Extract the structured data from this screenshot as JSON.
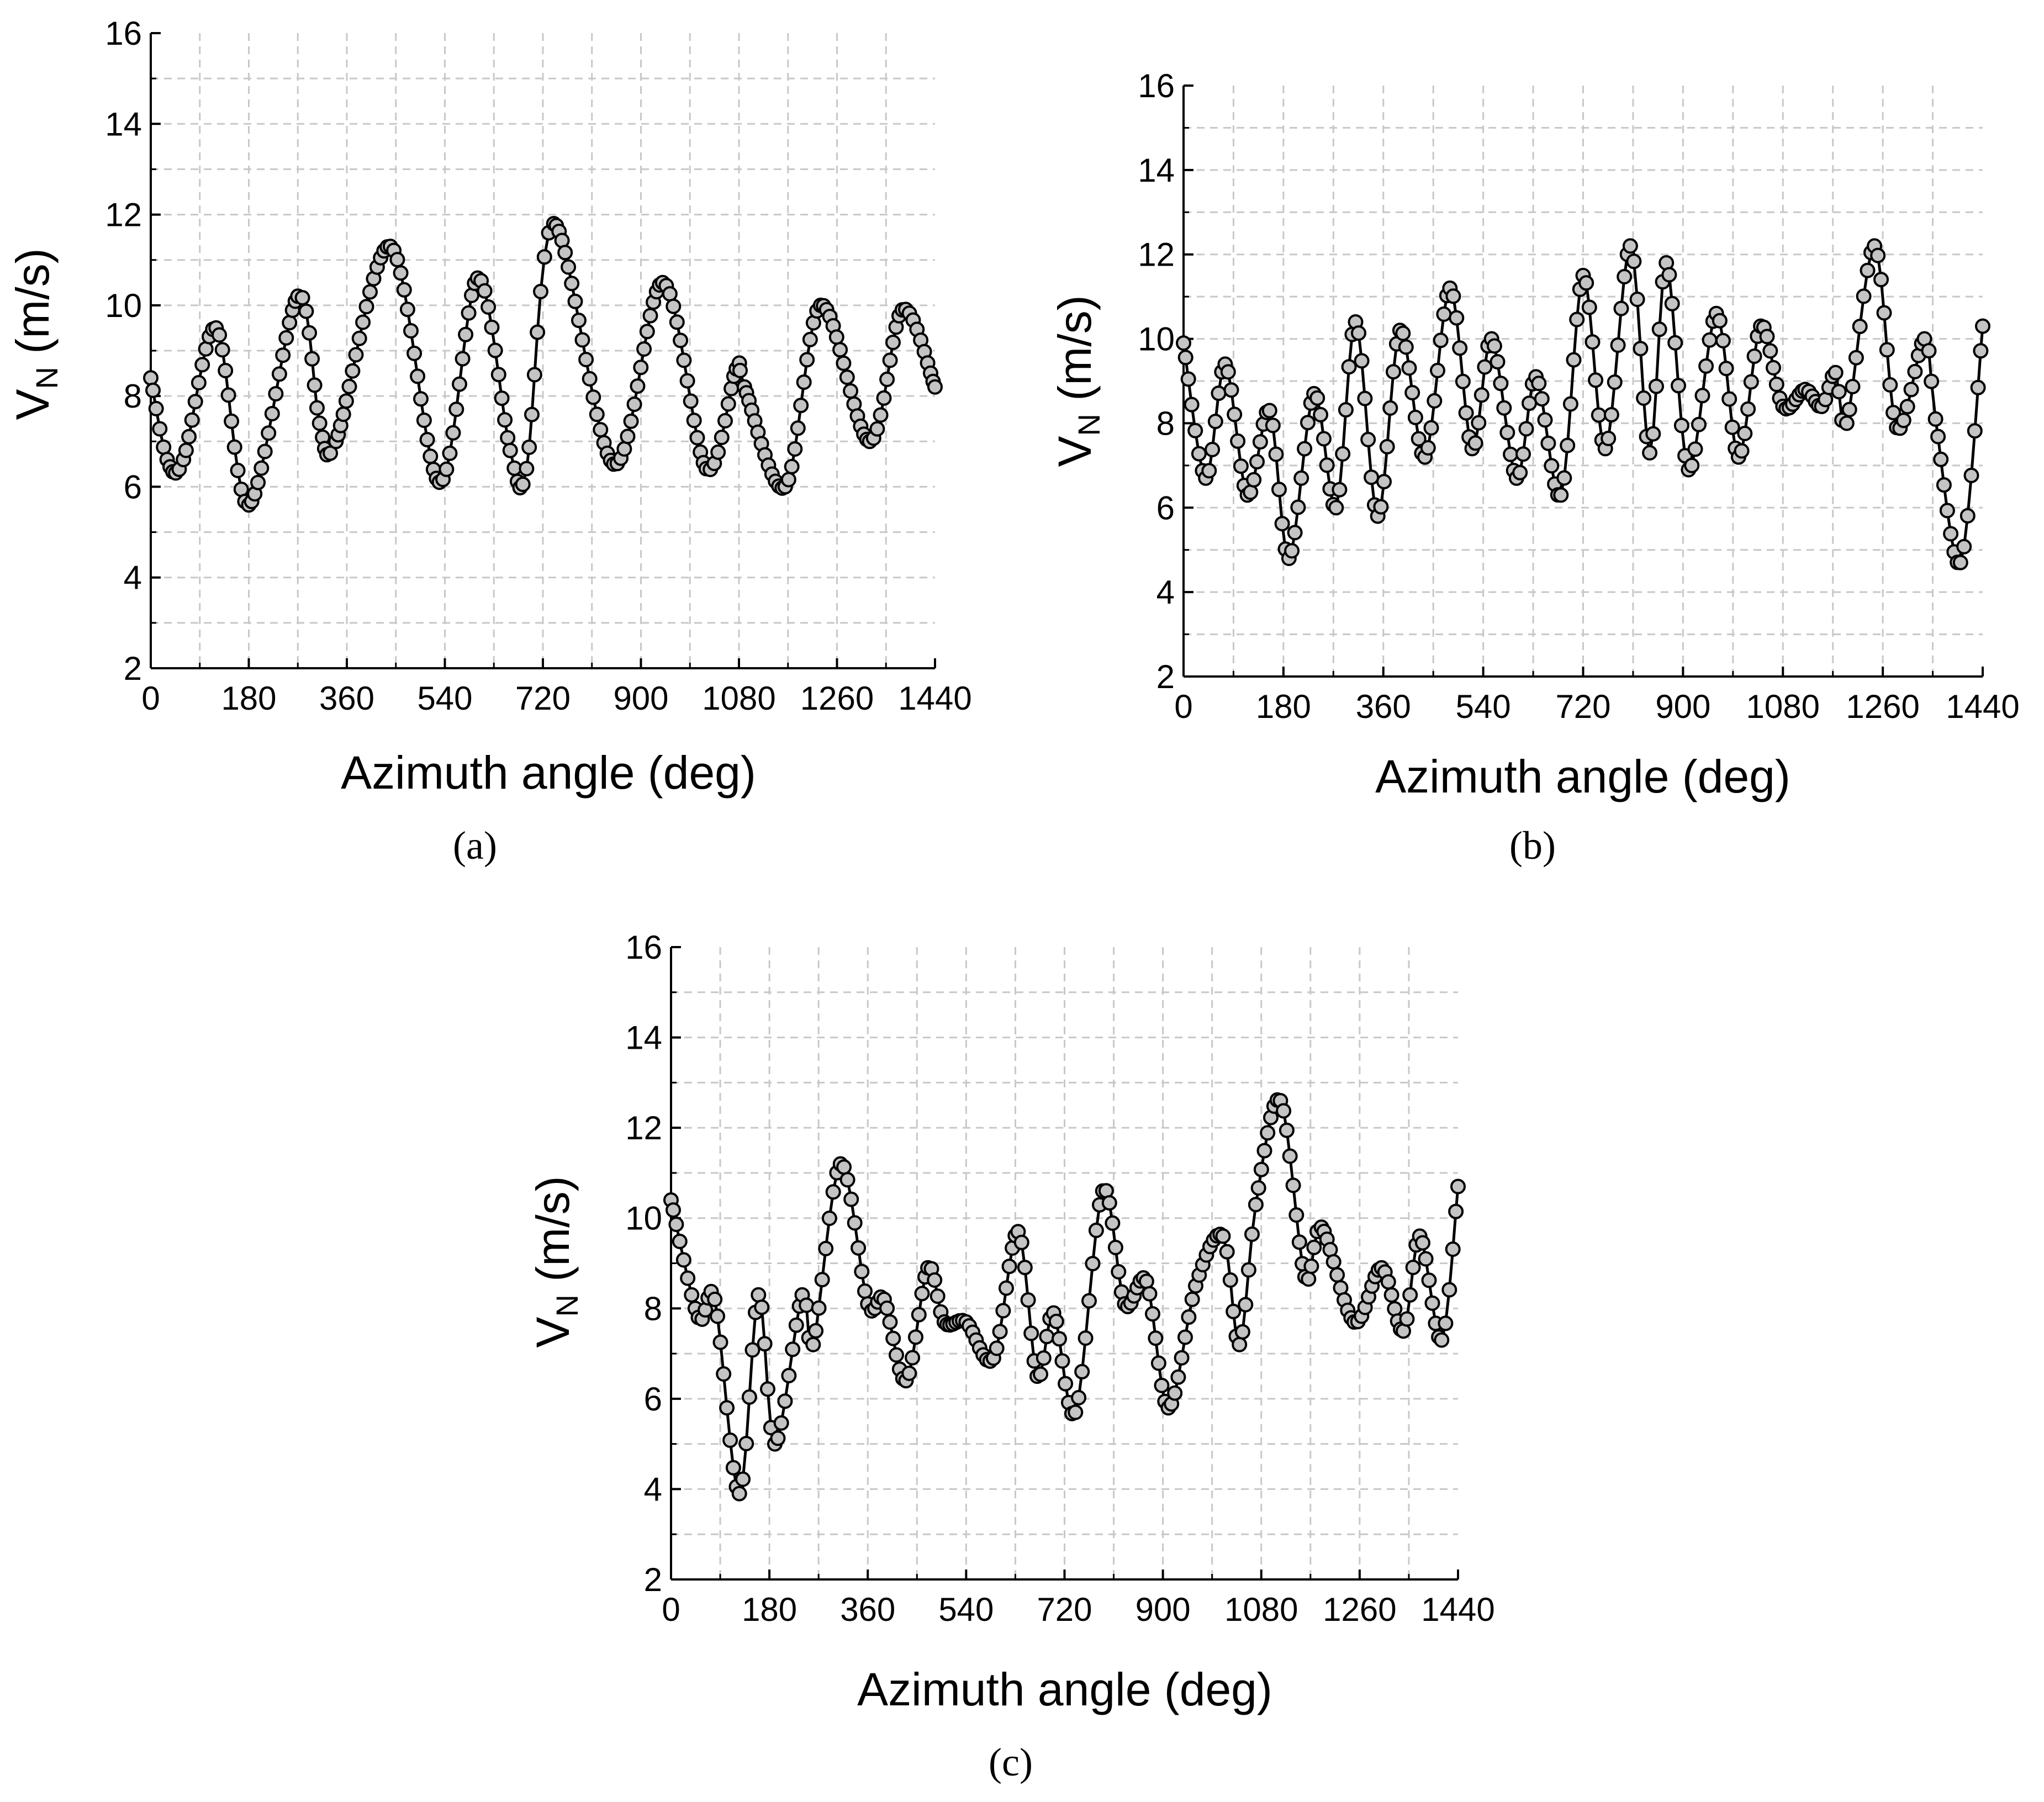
{
  "chart_data": [
    {
      "type": "line",
      "panel": "a",
      "caption": "(a)",
      "xlabel": "Azimuth angle (deg)",
      "ylabel_main": "V",
      "ylabel_sub": "N",
      "ylabel_unit": " (m/s)",
      "xlim": [
        0,
        1440
      ],
      "ylim": [
        2,
        16
      ],
      "xticks": [
        "0",
        "180",
        "360",
        "540",
        "720",
        "900",
        "1080",
        "1260",
        "1440"
      ],
      "yticks": [
        "2",
        "4",
        "6",
        "8",
        "10",
        "12",
        "14",
        "16"
      ],
      "series": [
        {
          "name": "V_N",
          "x": [
            0,
            30,
            60,
            120,
            180,
            270,
            310,
            340,
            440,
            530,
            600,
            660,
            690,
            740,
            850,
            940,
            1020,
            1075,
            1090,
            1165,
            1230,
            1320,
            1380,
            1440
          ],
          "y": [
            8.4,
            6.6,
            6.6,
            9.5,
            5.6,
            10.2,
            7.4,
            7.0,
            11.3,
            6.1,
            10.6,
            6.8,
            6.4,
            11.8,
            6.5,
            10.5,
            6.4,
            8.6,
            8.2,
            6.0,
            10.0,
            7.0,
            9.9,
            8.2
          ]
        }
      ]
    },
    {
      "type": "line",
      "panel": "b",
      "caption": "(b)",
      "xlabel": "Azimuth angle (deg)",
      "ylabel_main": "V",
      "ylabel_sub": "N",
      "ylabel_unit": " (m/s)",
      "xlim": [
        0,
        1440
      ],
      "ylim": [
        2,
        16
      ],
      "xticks": [
        "0",
        "180",
        "360",
        "540",
        "720",
        "900",
        "1080",
        "1260",
        "1440"
      ],
      "yticks": [
        "2",
        "4",
        "6",
        "8",
        "10",
        "12",
        "14",
        "16"
      ],
      "series": [
        {
          "name": "V_N",
          "x": [
            0,
            40,
            75,
            115,
            155,
            190,
            235,
            275,
            310,
            350,
            390,
            435,
            480,
            520,
            555,
            600,
            635,
            680,
            720,
            760,
            805,
            840,
            870,
            910,
            960,
            1000,
            1040,
            1080,
            1120,
            1150,
            1175,
            1195,
            1245,
            1285,
            1335,
            1355,
            1400,
            1440
          ],
          "y": [
            9.9,
            6.7,
            9.4,
            6.3,
            8.3,
            4.8,
            8.7,
            6.0,
            10.4,
            5.8,
            10.2,
            7.2,
            11.2,
            7.4,
            10.0,
            6.7,
            9.1,
            6.3,
            11.5,
            7.4,
            12.2,
            7.3,
            11.8,
            6.9,
            10.6,
            7.2,
            10.3,
            8.4,
            8.8,
            8.4,
            9.2,
            8.0,
            12.2,
            7.9,
            10.0,
            8.1,
            4.7,
            10.3
          ]
        }
      ]
    },
    {
      "type": "line",
      "panel": "c",
      "caption": "(c)",
      "xlabel": "Azimuth angle (deg)",
      "ylabel_main": "V",
      "ylabel_sub": "N",
      "ylabel_unit": " (m/s)",
      "xlim": [
        0,
        1440
      ],
      "ylim": [
        2,
        16
      ],
      "xticks": [
        "0",
        "180",
        "360",
        "540",
        "720",
        "900",
        "1080",
        "1260",
        "1440"
      ],
      "yticks": [
        "2",
        "4",
        "6",
        "8",
        "10",
        "12",
        "14",
        "16"
      ],
      "series": [
        {
          "name": "V_N",
          "x": [
            0,
            50,
            80,
            125,
            160,
            190,
            240,
            260,
            310,
            360,
            390,
            430,
            470,
            500,
            540,
            590,
            635,
            670,
            700,
            740,
            790,
            830,
            870,
            910,
            960,
            1010,
            1040,
            1070,
            1115,
            1160,
            1190,
            1250,
            1300,
            1340,
            1370,
            1410,
            1440
          ],
          "y": [
            10.4,
            7.8,
            8.2,
            3.9,
            8.3,
            5.0,
            8.3,
            7.2,
            11.2,
            8.1,
            8.2,
            6.4,
            8.9,
            7.7,
            7.7,
            6.9,
            9.7,
            6.5,
            7.9,
            5.7,
            10.6,
            8.1,
            8.6,
            5.8,
            8.5,
            9.6,
            7.2,
            10.3,
            12.6,
            8.7,
            9.8,
            7.7,
            8.9,
            7.5,
            9.6,
            7.3,
            10.7
          ]
        }
      ]
    }
  ]
}
